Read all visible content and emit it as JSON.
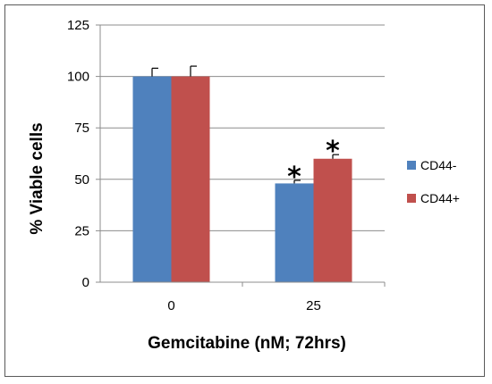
{
  "chart_data": {
    "type": "bar",
    "title": "",
    "xlabel": "Gemcitabine (nM; 72hrs)",
    "ylabel": "% Viable cells",
    "categories": [
      "0",
      "25"
    ],
    "ylim": [
      0,
      125
    ],
    "yticks": [
      "0",
      "25",
      "50",
      "75",
      "100",
      "125"
    ],
    "grid": true,
    "legend_position": "right",
    "series": [
      {
        "name": "CD44-",
        "values": [
          100,
          48
        ],
        "errors": [
          4,
          1.5
        ],
        "color": "#4f81bd"
      },
      {
        "name": "CD44+",
        "values": [
          100,
          60
        ],
        "errors": [
          5,
          2
        ],
        "color": "#c0504d"
      }
    ],
    "annotations": [
      {
        "text": "*",
        "category": "25",
        "series": "CD44-"
      },
      {
        "text": "*",
        "category": "25",
        "series": "CD44+"
      }
    ]
  }
}
